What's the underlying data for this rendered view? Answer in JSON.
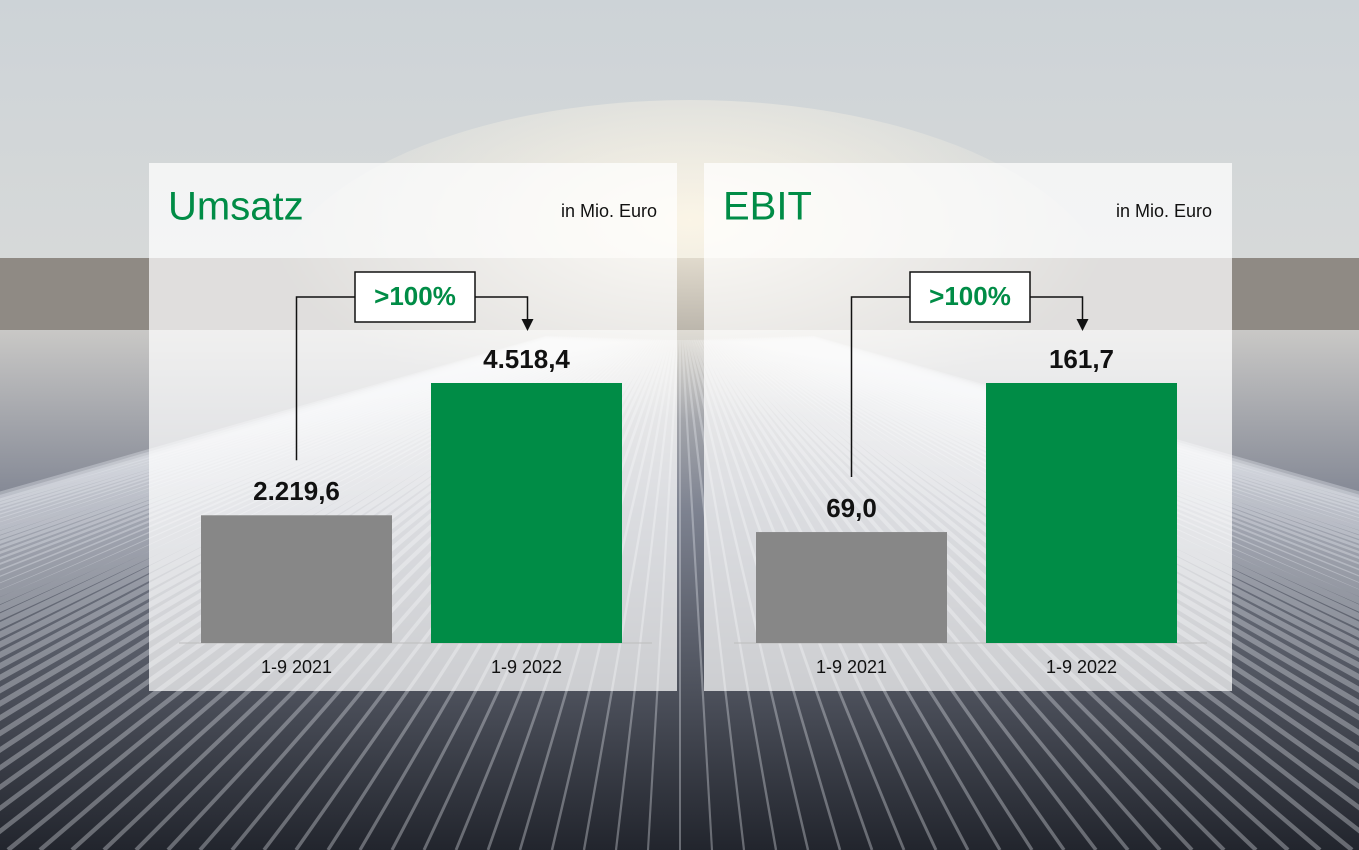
{
  "chart_data": [
    {
      "type": "bar",
      "title": "Umsatz",
      "subtitle": "in Mio. Euro",
      "annotation": ">100%",
      "categories": [
        "1-9 2021",
        "1-9 2022"
      ],
      "values": [
        2219.6,
        4518.4
      ],
      "value_labels": [
        "2.219,6",
        "4.518,4"
      ],
      "colors": [
        "#878787",
        "#008c46"
      ]
    },
    {
      "type": "bar",
      "title": "EBIT",
      "subtitle": "in Mio. Euro",
      "annotation": ">100%",
      "categories": [
        "1-9 2021",
        "1-9 2022"
      ],
      "values": [
        69.0,
        161.7
      ],
      "value_labels": [
        "69,0",
        "161,7"
      ],
      "colors": [
        "#878787",
        "#008c46"
      ]
    }
  ]
}
